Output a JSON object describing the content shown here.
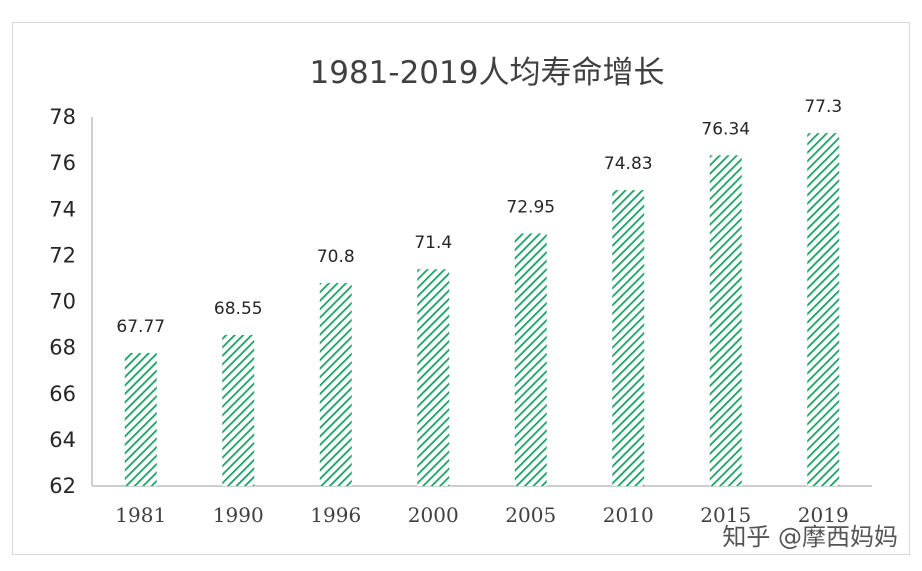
{
  "chart_data": {
    "type": "bar",
    "title": "1981-2019人均寿命增长",
    "xlabel": "",
    "ylabel": "",
    "categories": [
      "1981",
      "1990",
      "1996",
      "2000",
      "2005",
      "2010",
      "2015",
      "2019"
    ],
    "values": [
      67.77,
      68.55,
      70.8,
      71.4,
      72.95,
      74.83,
      76.34,
      77.3
    ],
    "data_labels": [
      "67.77",
      "68.55",
      "70.8",
      "71.4",
      "72.95",
      "74.83",
      "76.34",
      "77.3"
    ],
    "ylim": [
      62,
      78
    ],
    "yticks": [
      "62",
      "64",
      "66",
      "68",
      "70",
      "72",
      "74",
      "76",
      "78"
    ],
    "grid": false,
    "legend": "none",
    "bar_pattern": "diagonal-hatch",
    "colors": {
      "bar": "#1aa265",
      "axis": "#bfbfbf",
      "title": "#404040"
    }
  },
  "watermark": "知乎 @摩西妈妈"
}
